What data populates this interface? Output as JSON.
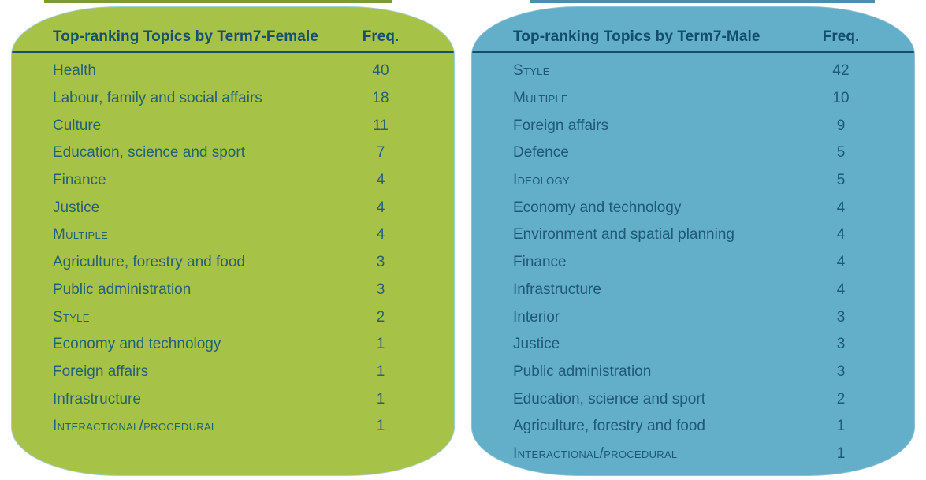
{
  "tables": [
    {
      "title": "Top-ranking Topics by Term7-Female",
      "freq_header": "Freq.",
      "colors": {
        "background": "#a6c348",
        "top_strip": "#7d9b31",
        "border": "#a9cdd3",
        "heading": "#15506e",
        "rule": "#15506e",
        "text": "#286073"
      },
      "rows": [
        {
          "label": "Health",
          "freq": 40,
          "smallcaps": false
        },
        {
          "label": "Labour, family and social affairs",
          "freq": 18,
          "smallcaps": false
        },
        {
          "label": "Culture",
          "freq": 11,
          "smallcaps": false
        },
        {
          "label": "Education, science and sport",
          "freq": 7,
          "smallcaps": false
        },
        {
          "label": "Finance",
          "freq": 4,
          "smallcaps": false
        },
        {
          "label": "Justice",
          "freq": 4,
          "smallcaps": false
        },
        {
          "label": "Multiple",
          "freq": 4,
          "smallcaps": true
        },
        {
          "label": "Agriculture, forestry and food",
          "freq": 3,
          "smallcaps": false
        },
        {
          "label": "Public administration",
          "freq": 3,
          "smallcaps": false
        },
        {
          "label": "Style",
          "freq": 2,
          "smallcaps": true
        },
        {
          "label": "Economy and technology",
          "freq": 1,
          "smallcaps": false
        },
        {
          "label": "Foreign affairs",
          "freq": 1,
          "smallcaps": false
        },
        {
          "label": "Infrastructure",
          "freq": 1,
          "smallcaps": false
        },
        {
          "label": "Interactional/procedural",
          "freq": 1,
          "smallcaps": true
        }
      ]
    },
    {
      "title": "Top-ranking Topics by Term7-Male",
      "freq_header": "Freq.",
      "colors": {
        "background": "#63aec8",
        "top_strip": "#4c8da9",
        "border": "#8cc0d2",
        "heading": "#124d6e",
        "rule": "#124d6e",
        "text": "#1e5a78"
      },
      "rows": [
        {
          "label": "Style",
          "freq": 42,
          "smallcaps": true
        },
        {
          "label": "Multiple",
          "freq": 10,
          "smallcaps": true
        },
        {
          "label": "Foreign affairs",
          "freq": 9,
          "smallcaps": false
        },
        {
          "label": "Defence",
          "freq": 5,
          "smallcaps": false
        },
        {
          "label": "Ideology",
          "freq": 5,
          "smallcaps": true
        },
        {
          "label": "Economy and technology",
          "freq": 4,
          "smallcaps": false
        },
        {
          "label": "Environment and spatial planning",
          "freq": 4,
          "smallcaps": false
        },
        {
          "label": "Finance",
          "freq": 4,
          "smallcaps": false
        },
        {
          "label": "Infrastructure",
          "freq": 4,
          "smallcaps": false
        },
        {
          "label": "Interior",
          "freq": 3,
          "smallcaps": false
        },
        {
          "label": "Justice",
          "freq": 3,
          "smallcaps": false
        },
        {
          "label": "Public administration",
          "freq": 3,
          "smallcaps": false
        },
        {
          "label": "Education, science and sport",
          "freq": 2,
          "smallcaps": false
        },
        {
          "label": "Agriculture, forestry and food",
          "freq": 1,
          "smallcaps": false
        },
        {
          "label": "Interactional/procedural",
          "freq": 1,
          "smallcaps": true
        }
      ]
    }
  ],
  "chart_data": [
    {
      "type": "table",
      "title": "Top-ranking Topics by Term7-Female",
      "columns": [
        "Topic",
        "Freq."
      ],
      "categories": [
        "Health",
        "Labour, family and social affairs",
        "Culture",
        "Education, science and sport",
        "Finance",
        "Justice",
        "Multiple",
        "Agriculture, forestry and food",
        "Public administration",
        "Style",
        "Economy and technology",
        "Foreign affairs",
        "Infrastructure",
        "Interactional/procedural"
      ],
      "values": [
        40,
        18,
        11,
        7,
        4,
        4,
        4,
        3,
        3,
        2,
        1,
        1,
        1,
        1
      ]
    },
    {
      "type": "table",
      "title": "Top-ranking Topics by Term7-Male",
      "columns": [
        "Topic",
        "Freq."
      ],
      "categories": [
        "Style",
        "Multiple",
        "Foreign affairs",
        "Defence",
        "Ideology",
        "Economy and technology",
        "Environment and spatial planning",
        "Finance",
        "Infrastructure",
        "Interior",
        "Justice",
        "Public administration",
        "Education, science and sport",
        "Agriculture, forestry and food",
        "Interactional/procedural"
      ],
      "values": [
        42,
        10,
        9,
        5,
        5,
        4,
        4,
        4,
        4,
        3,
        3,
        3,
        2,
        1,
        1
      ]
    }
  ]
}
